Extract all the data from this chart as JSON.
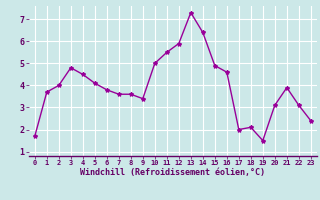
{
  "x": [
    0,
    1,
    2,
    3,
    4,
    5,
    6,
    7,
    8,
    9,
    10,
    11,
    12,
    13,
    14,
    15,
    16,
    17,
    18,
    19,
    20,
    21,
    22,
    23
  ],
  "y": [
    1.7,
    3.7,
    4.0,
    4.8,
    4.5,
    4.1,
    3.8,
    3.6,
    3.6,
    3.4,
    5.0,
    5.5,
    5.9,
    7.3,
    6.4,
    4.9,
    4.6,
    2.0,
    2.1,
    1.5,
    3.1,
    3.9,
    3.1,
    2.4
  ],
  "line_color": "#990099",
  "marker": "*",
  "marker_size": 3,
  "bg_color": "#cce8e8",
  "grid_color": "#ffffff",
  "xlabel": "Windchill (Refroidissement éolien,°C)",
  "xlabel_color": "#660066",
  "tick_color": "#660066",
  "ylim": [
    0.8,
    7.6
  ],
  "xlim": [
    -0.5,
    23.5
  ],
  "yticks": [
    1,
    2,
    3,
    4,
    5,
    6,
    7
  ],
  "xticks": [
    0,
    1,
    2,
    3,
    4,
    5,
    6,
    7,
    8,
    9,
    10,
    11,
    12,
    13,
    14,
    15,
    16,
    17,
    18,
    19,
    20,
    21,
    22,
    23
  ],
  "figsize": [
    3.2,
    2.0
  ],
  "dpi": 100
}
